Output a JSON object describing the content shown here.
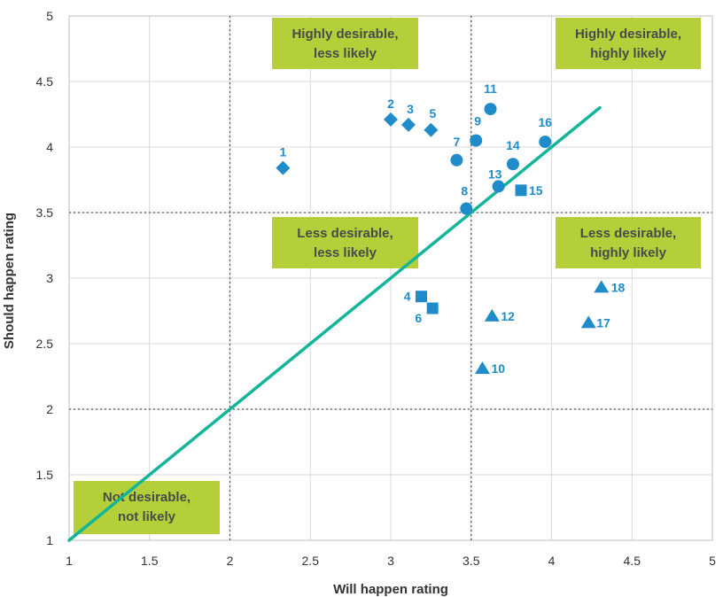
{
  "chart_data": {
    "type": "scatter",
    "xlabel": "Will happen rating",
    "ylabel": "Should happen rating",
    "xlim": [
      1,
      5
    ],
    "ylim": [
      1,
      5
    ],
    "xticks": [
      "1",
      "1.5",
      "2",
      "2.5",
      "3",
      "3.5",
      "4",
      "4.5",
      "5"
    ],
    "yticks": [
      "1",
      "1.5",
      "2",
      "2.5",
      "3",
      "3.5",
      "4",
      "4.5",
      "5"
    ],
    "grid": true,
    "divider_lines": {
      "x": [
        2,
        3.5
      ],
      "y": [
        2,
        3.5
      ]
    },
    "reference_line": {
      "from": [
        1,
        1
      ],
      "to": [
        4.3,
        4.3
      ],
      "color": "#12b59a"
    },
    "point_color": "#1f8bc9",
    "quadrant_labels": [
      {
        "lines": [
          "Highly desirable,",
          "less likely"
        ]
      },
      {
        "lines": [
          "Highly desirable,",
          "highly likely"
        ]
      },
      {
        "lines": [
          "Less desirable,",
          "less likely"
        ]
      },
      {
        "lines": [
          "Less desirable,",
          "highly likely"
        ]
      },
      {
        "lines": [
          "Not desirable,",
          "not likely"
        ]
      }
    ],
    "quadrant_color": "#b5cf3a",
    "points": [
      {
        "id": "1",
        "x": 2.33,
        "y": 3.84,
        "shape": "diamond"
      },
      {
        "id": "2",
        "x": 3.0,
        "y": 4.21,
        "shape": "diamond"
      },
      {
        "id": "3",
        "x": 3.11,
        "y": 4.17,
        "shape": "diamond"
      },
      {
        "id": "4",
        "x": 3.19,
        "y": 2.86,
        "shape": "square"
      },
      {
        "id": "5",
        "x": 3.25,
        "y": 4.13,
        "shape": "diamond"
      },
      {
        "id": "6",
        "x": 3.26,
        "y": 2.77,
        "shape": "square"
      },
      {
        "id": "7",
        "x": 3.41,
        "y": 3.9,
        "shape": "circle"
      },
      {
        "id": "8",
        "x": 3.47,
        "y": 3.53,
        "shape": "circle"
      },
      {
        "id": "9",
        "x": 3.53,
        "y": 4.05,
        "shape": "circle"
      },
      {
        "id": "10",
        "x": 3.57,
        "y": 2.31,
        "shape": "triangle"
      },
      {
        "id": "11",
        "x": 3.62,
        "y": 4.29,
        "shape": "circle"
      },
      {
        "id": "12",
        "x": 3.63,
        "y": 2.71,
        "shape": "triangle"
      },
      {
        "id": "13",
        "x": 3.67,
        "y": 3.7,
        "shape": "circle"
      },
      {
        "id": "14",
        "x": 3.76,
        "y": 3.87,
        "shape": "circle"
      },
      {
        "id": "15",
        "x": 3.81,
        "y": 3.67,
        "shape": "square"
      },
      {
        "id": "16",
        "x": 3.96,
        "y": 4.04,
        "shape": "circle"
      },
      {
        "id": "17",
        "x": 4.23,
        "y": 2.66,
        "shape": "triangle"
      },
      {
        "id": "18",
        "x": 4.31,
        "y": 2.93,
        "shape": "triangle"
      }
    ]
  }
}
